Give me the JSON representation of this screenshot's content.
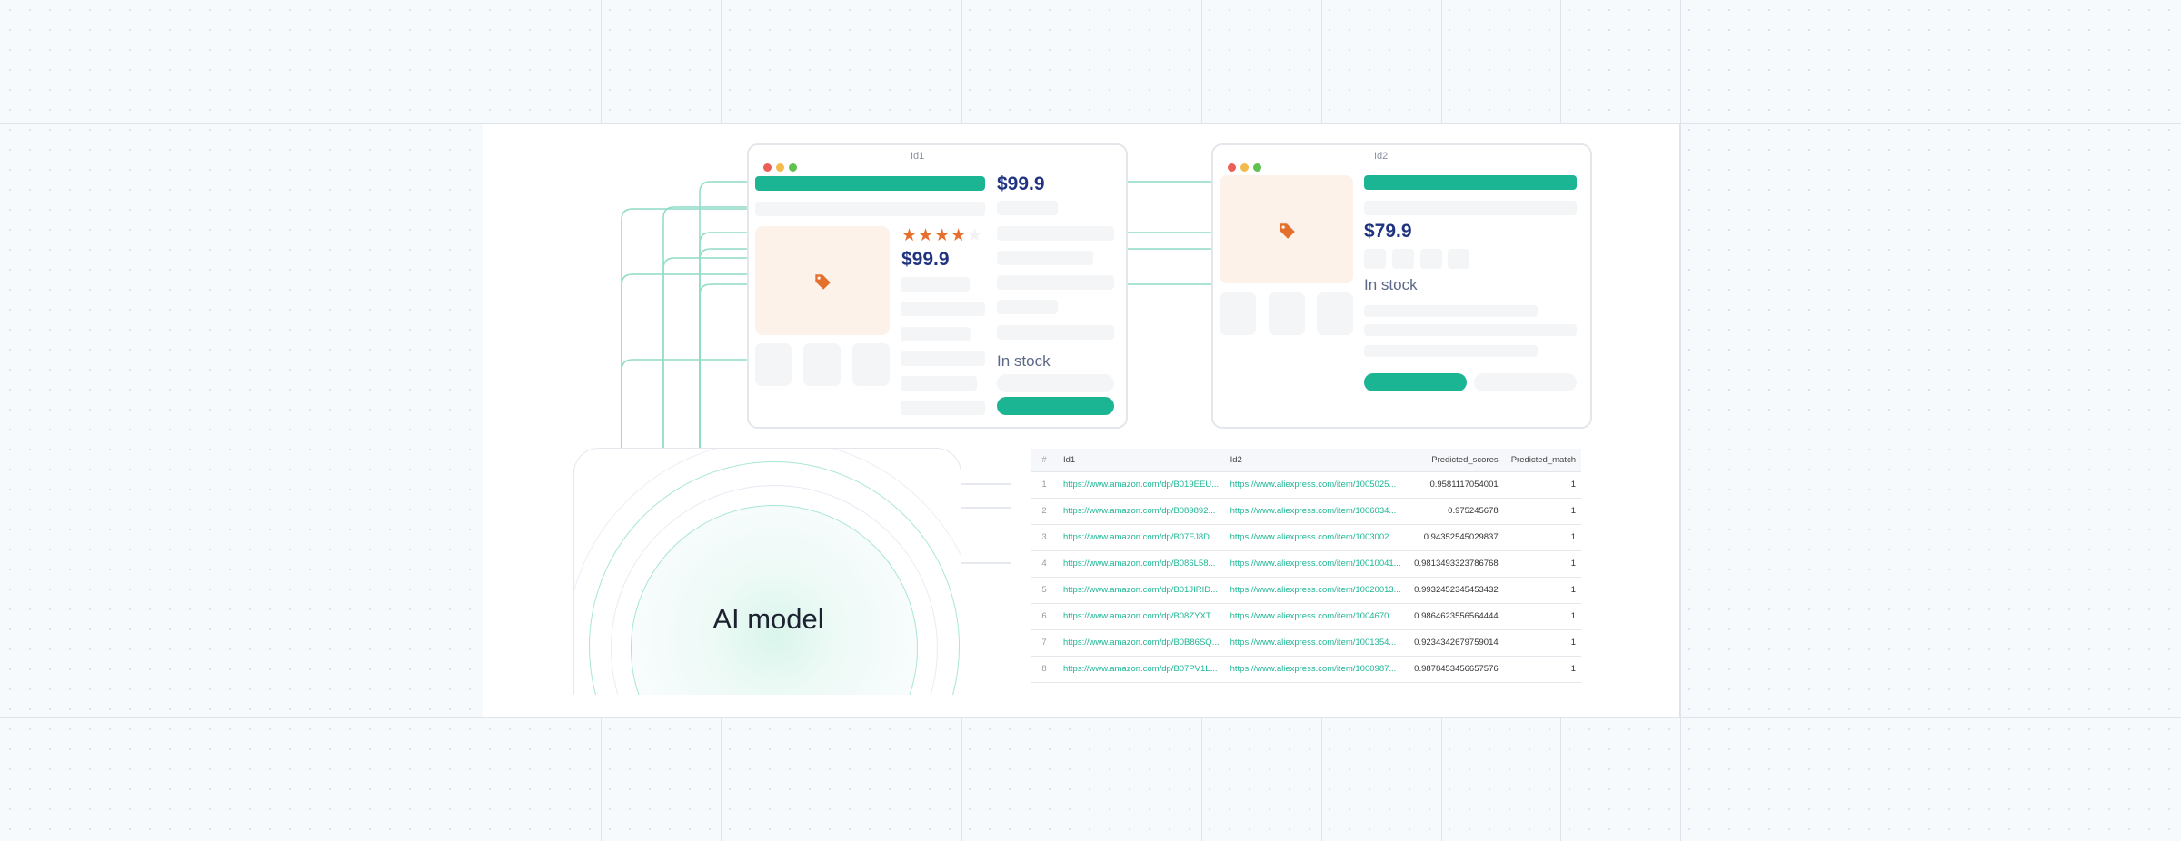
{
  "colors": {
    "accent": "#1cb594",
    "price": "#1f3380",
    "star": "#e5702e",
    "image_bg": "#fdf2ea"
  },
  "window1": {
    "title": "Id1",
    "price_main": "$99.9",
    "price_side": "$99.9",
    "stock": "In stock",
    "rating": 4,
    "rating_max": 5,
    "icon": "price-tag-icon"
  },
  "window2": {
    "title": "Id2",
    "price": "$79.9",
    "stock": "In stock",
    "icon": "price-tag-icon"
  },
  "model": {
    "label": "AI model"
  },
  "table": {
    "headers": [
      "#",
      "Id1",
      "Id2",
      "Predicted_scores",
      "Predicted_match"
    ],
    "rows": [
      [
        "1",
        "https://www.amazon.com/dp/B019EEU...",
        "https://www.aliexpress.com/item/1005025...",
        "0.9581117054001",
        "1"
      ],
      [
        "2",
        "https://www.amazon.com/dp/B089892...",
        "https://www.aliexpress.com/item/1006034...",
        "0.975245678",
        "1"
      ],
      [
        "3",
        "https://www.amazon.com/dp/B07FJ8D...",
        "https://www.aliexpress.com/item/1003002...",
        "0.94352545029837",
        "1"
      ],
      [
        "4",
        "https://www.amazon.com/dp/B086L58...",
        "https://www.aliexpress.com/item/10010041...",
        "0.9813493323786768",
        "1"
      ],
      [
        "5",
        "https://www.amazon.com/dp/B01JIRID...",
        "https://www.aliexpress.com/item/10020013...",
        "0.9932452345453432",
        "1"
      ],
      [
        "6",
        "https://www.amazon.com/dp/B08ZYXT...",
        "https://www.aliexpress.com/item/1004670...",
        "0.9864623556564444",
        "1"
      ],
      [
        "7",
        "https://www.amazon.com/dp/B0B86SQ...",
        "https://www.aliexpress.com/item/1001354...",
        "0.9234342679759014",
        "1"
      ],
      [
        "8",
        "https://www.amazon.com/dp/B07PV1L...",
        "https://www.aliexpress.com/item/1000987...",
        "0.9878453456657576",
        "1"
      ]
    ]
  }
}
